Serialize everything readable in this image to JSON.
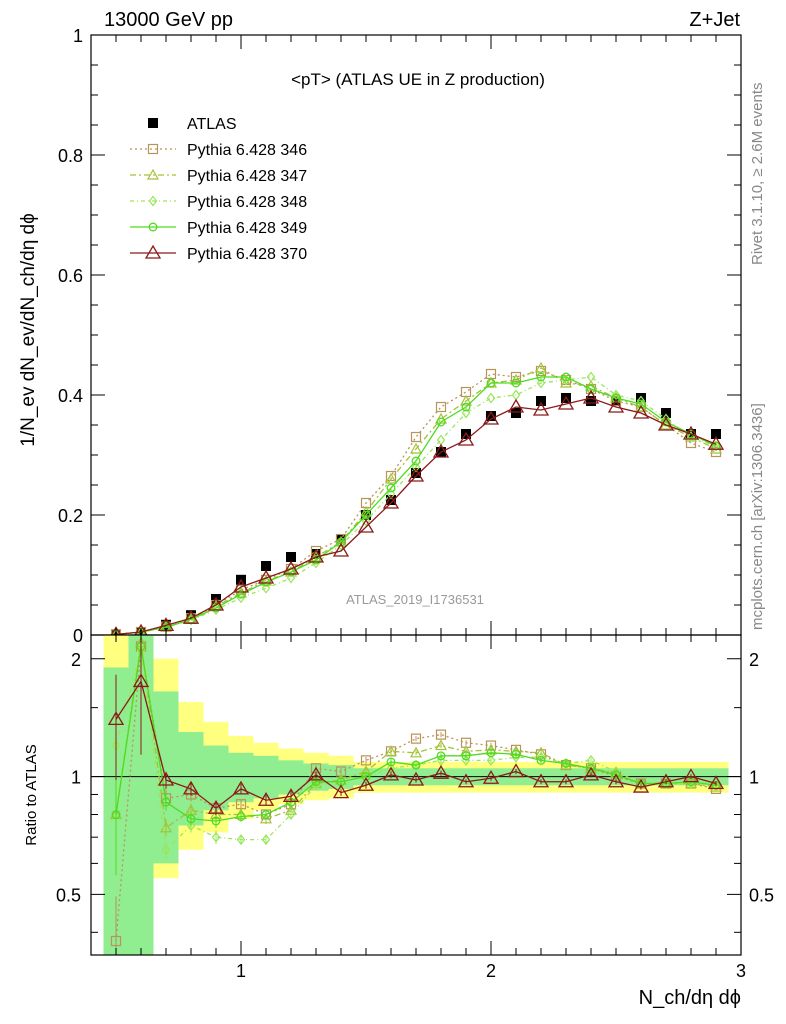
{
  "header": {
    "left": "13000 GeV pp",
    "right": "Z+Jet"
  },
  "side_labels": {
    "rivet": "Rivet 3.1.10, ≥ 2.6M events",
    "mcplots": "mcplots.cern.ch [arXiv:1306.3436]"
  },
  "colors": {
    "band_inner": "#90ee90",
    "band_outer": "#ffff80",
    "atlas": "#000000",
    "p346": "#b8935a",
    "p347": "#a4c238",
    "p348": "#9ae65a",
    "p349": "#4fdc1e",
    "p370": "#8b1a1a"
  },
  "chart_data": [
    {
      "type": "line",
      "title": "<pT> (ATLAS UE in Z production)",
      "watermark": "ATLAS_2019_I1736531",
      "ylabel": "1/N_ev dN_ev/dN_ch/dη dϕ",
      "xlim": [
        0.4,
        3.0
      ],
      "ylim": [
        0,
        1.0
      ],
      "yticks": [
        {
          "v": 0,
          "label": "0"
        },
        {
          "v": 0.2,
          "label": "0.2"
        },
        {
          "v": 0.4,
          "label": "0.4"
        },
        {
          "v": 0.6,
          "label": "0.6"
        },
        {
          "v": 0.8,
          "label": "0.8"
        },
        {
          "v": 1.0,
          "label": "1"
        }
      ],
      "x": [
        0.5,
        0.6,
        0.7,
        0.8,
        0.9,
        1.0,
        1.1,
        1.2,
        1.3,
        1.4,
        1.5,
        1.6,
        1.7,
        1.8,
        1.9,
        2.0,
        2.1,
        2.2,
        2.3,
        2.4,
        2.5,
        2.6,
        2.7,
        2.8,
        2.9
      ],
      "series": [
        {
          "name": "ATLAS",
          "style": "data",
          "values": [
            0.001,
            0.005,
            0.017,
            0.033,
            0.06,
            0.092,
            0.115,
            0.13,
            0.135,
            0.16,
            0.2,
            0.225,
            0.27,
            0.305,
            0.335,
            0.365,
            0.37,
            0.39,
            0.395,
            0.39,
            0.39,
            0.395,
            0.37,
            0.335,
            0.335
          ]
        },
        {
          "name": "Pythia 6.428 346",
          "style": "p346",
          "values": [
            0.001,
            0.005,
            0.014,
            0.028,
            0.05,
            0.075,
            0.092,
            0.11,
            0.14,
            0.16,
            0.22,
            0.265,
            0.33,
            0.38,
            0.405,
            0.435,
            0.43,
            0.44,
            0.425,
            0.41,
            0.39,
            0.38,
            0.35,
            0.32,
            0.305
          ]
        },
        {
          "name": "Pythia 6.428 347",
          "style": "p347",
          "values": [
            0.001,
            0.005,
            0.013,
            0.026,
            0.048,
            0.07,
            0.09,
            0.105,
            0.13,
            0.155,
            0.205,
            0.26,
            0.31,
            0.36,
            0.39,
            0.42,
            0.425,
            0.445,
            0.42,
            0.415,
            0.395,
            0.38,
            0.35,
            0.33,
            0.31
          ]
        },
        {
          "name": "Pythia 6.428 348",
          "style": "p348",
          "values": [
            0.001,
            0.005,
            0.012,
            0.025,
            0.042,
            0.062,
            0.078,
            0.095,
            0.12,
            0.15,
            0.19,
            0.235,
            0.28,
            0.325,
            0.37,
            0.395,
            0.4,
            0.42,
            0.425,
            0.43,
            0.4,
            0.39,
            0.36,
            0.33,
            0.315
          ]
        },
        {
          "name": "Pythia 6.428 349",
          "style": "p349",
          "values": [
            0.001,
            0.005,
            0.013,
            0.026,
            0.045,
            0.068,
            0.088,
            0.105,
            0.125,
            0.155,
            0.2,
            0.245,
            0.29,
            0.355,
            0.38,
            0.42,
            0.42,
            0.43,
            0.43,
            0.41,
            0.395,
            0.385,
            0.355,
            0.335,
            0.315
          ]
        },
        {
          "name": "Pythia 6.428 370",
          "style": "p370",
          "values": [
            0.001,
            0.005,
            0.016,
            0.028,
            0.05,
            0.08,
            0.095,
            0.11,
            0.13,
            0.14,
            0.18,
            0.22,
            0.265,
            0.305,
            0.325,
            0.36,
            0.38,
            0.375,
            0.385,
            0.395,
            0.38,
            0.37,
            0.35,
            0.335,
            0.318
          ]
        }
      ]
    },
    {
      "type": "line",
      "ylabel": "Ratio to ATLAS",
      "xlabel": "N_ch/dη dϕ",
      "xlim": [
        0.4,
        3.0
      ],
      "ylim": [
        0.35,
        2.3
      ],
      "yscale": "log",
      "yticks": [
        {
          "v": 0.5,
          "label": "0.5"
        },
        {
          "v": 1,
          "label": "1"
        },
        {
          "v": 2,
          "label": "2"
        }
      ],
      "xticks": [
        {
          "v": 1,
          "label": "1"
        },
        {
          "v": 2,
          "label": "2"
        },
        {
          "v": 3,
          "label": "3"
        }
      ],
      "bands": {
        "inner": [
          [
            0.45,
            0.55,
            0.35,
            1.9
          ],
          [
            0.55,
            0.65,
            0.35,
            2.3
          ],
          [
            0.65,
            0.75,
            0.6,
            1.65
          ],
          [
            0.75,
            0.85,
            0.75,
            1.3
          ],
          [
            0.85,
            0.95,
            0.82,
            1.2
          ],
          [
            0.95,
            1.05,
            0.86,
            1.15
          ],
          [
            1.05,
            1.15,
            0.88,
            1.13
          ],
          [
            1.15,
            1.25,
            0.9,
            1.1
          ],
          [
            1.25,
            1.35,
            0.92,
            1.08
          ],
          [
            1.35,
            1.45,
            0.93,
            1.07
          ],
          [
            1.45,
            2.95,
            0.95,
            1.05
          ]
        ],
        "outer": [
          [
            0.45,
            0.55,
            0.35,
            2.3
          ],
          [
            0.55,
            0.65,
            0.35,
            2.3
          ],
          [
            0.65,
            0.75,
            0.55,
            2.0
          ],
          [
            0.75,
            0.85,
            0.65,
            1.55
          ],
          [
            0.85,
            0.95,
            0.72,
            1.38
          ],
          [
            0.95,
            1.05,
            0.78,
            1.27
          ],
          [
            1.05,
            1.15,
            0.82,
            1.22
          ],
          [
            1.15,
            1.25,
            0.85,
            1.18
          ],
          [
            1.25,
            1.35,
            0.87,
            1.15
          ],
          [
            1.35,
            1.45,
            0.88,
            1.13
          ],
          [
            1.45,
            2.95,
            0.91,
            1.09
          ]
        ]
      },
      "series": [
        {
          "name": "Pythia 6.428 346",
          "style": "p346",
          "values": [
            0.38,
            2.15,
            0.88,
            0.9,
            0.83,
            0.85,
            0.8,
            0.85,
            1.05,
            1.03,
            1.1,
            1.16,
            1.25,
            1.28,
            1.22,
            1.2,
            1.17,
            1.14,
            1.07,
            1.05,
            1.0,
            0.96,
            0.96,
            0.96,
            0.93
          ]
        },
        {
          "name": "Pythia 6.428 347",
          "style": "p347",
          "values": [
            0.8,
            2.2,
            0.74,
            0.82,
            0.8,
            0.8,
            0.78,
            0.82,
            0.96,
            0.98,
            1.03,
            1.16,
            1.15,
            1.2,
            1.16,
            1.17,
            1.16,
            1.15,
            1.07,
            1.05,
            1.02,
            0.96,
            0.96,
            0.96,
            0.94
          ]
        },
        {
          "name": "Pythia 6.428 348",
          "style": "p348",
          "values": [
            1.2,
            2.1,
            0.65,
            0.75,
            0.7,
            0.69,
            0.69,
            0.8,
            0.95,
            0.97,
            1.0,
            1.05,
            1.07,
            1.1,
            1.1,
            1.1,
            1.12,
            1.12,
            1.08,
            1.1,
            1.03,
            0.96,
            0.96,
            0.96,
            0.95
          ]
        },
        {
          "name": "Pythia 6.428 349",
          "style": "p349",
          "values": [
            0.8,
            2.15,
            0.86,
            0.78,
            0.77,
            0.79,
            0.8,
            0.86,
            0.97,
            0.97,
            1.0,
            1.09,
            1.07,
            1.13,
            1.13,
            1.15,
            1.14,
            1.1,
            1.08,
            1.05,
            1.01,
            0.96,
            0.96,
            0.97,
            0.95
          ]
        },
        {
          "name": "Pythia 6.428 370",
          "style": "p370",
          "values": [
            1.4,
            1.75,
            0.98,
            0.93,
            0.83,
            0.93,
            0.87,
            0.89,
            1.01,
            0.91,
            0.95,
            1.01,
            0.98,
            1.02,
            0.97,
            0.99,
            1.03,
            0.97,
            0.97,
            1.01,
            0.97,
            0.94,
            0.97,
            1.0,
            0.96
          ]
        }
      ],
      "atlas_errors": [
        0.3,
        0.35,
        0.05,
        0.04,
        0.04,
        0.03,
        0.03,
        0.03,
        0.02,
        0.02,
        0.02,
        0.02,
        0.015,
        0.015,
        0.015,
        0.015,
        0.015,
        0.015,
        0.015,
        0.015,
        0.015,
        0.015,
        0.015,
        0.015,
        0.015
      ]
    }
  ]
}
